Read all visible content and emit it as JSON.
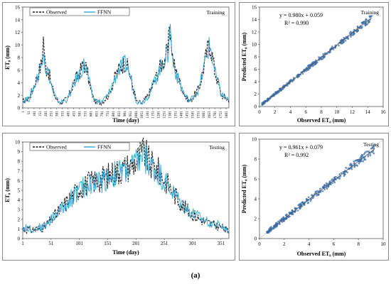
{
  "caption": "(a)",
  "colors": {
    "observed": "#1a1a1a",
    "ffnn": "#2ea8d8",
    "scatter": "#3a6fb0",
    "fit": "#555555"
  },
  "chart_data": [
    {
      "id": "training-ts",
      "type": "line",
      "panel_label": "Training",
      "xlabel": "Time (day)",
      "ylabel": "ET₀ (mm)",
      "ylim": [
        0,
        16
      ],
      "yticks": [
        0,
        2,
        4,
        6,
        8,
        10,
        12,
        14,
        16
      ],
      "xticks": [
        "1",
        "51",
        "101",
        "151",
        "201",
        "251",
        "301",
        "351",
        "401",
        "451",
        "501",
        "551",
        "601",
        "651",
        "701",
        "751",
        "801",
        "851",
        "901",
        "951",
        "1001",
        "1051",
        "1101",
        "1151",
        "1201",
        "1251",
        "1301",
        "1351",
        "1401",
        "1451",
        "1501",
        "1551",
        "1601",
        "1651",
        "1701",
        "1751",
        "1801"
      ],
      "xlim": [
        1,
        1826
      ],
      "legend": "top-left",
      "series": [
        {
          "name": "Observed",
          "style": "dashed",
          "x": [
            1,
            60,
            130,
            170,
            185,
            200,
            230,
            260,
            300,
            340,
            400,
            450,
            520,
            540,
            570,
            600,
            640,
            700,
            760,
            830,
            880,
            910,
            940,
            980,
            1010,
            1060,
            1120,
            1210,
            1260,
            1290,
            1300,
            1330,
            1370,
            1440,
            1480,
            1560,
            1610,
            1640,
            1660,
            1700,
            1760,
            1826
          ],
          "y": [
            1.0,
            1.6,
            5.0,
            7.2,
            11.5,
            6.5,
            5.8,
            3.2,
            1.2,
            0.8,
            1.5,
            3.8,
            6.2,
            7.0,
            6.0,
            3.0,
            1.0,
            0.9,
            2.0,
            5.5,
            6.8,
            7.2,
            6.0,
            3.0,
            0.9,
            0.8,
            2.2,
            6.2,
            8.0,
            9.0,
            14.0,
            7.5,
            5.0,
            1.8,
            1.0,
            3.0,
            7.0,
            9.5,
            10.2,
            6.0,
            2.0,
            1.2
          ]
        },
        {
          "name": "FFNN",
          "style": "solid",
          "x": [
            1,
            60,
            130,
            170,
            185,
            200,
            230,
            260,
            300,
            340,
            400,
            450,
            520,
            540,
            570,
            600,
            640,
            700,
            760,
            830,
            880,
            910,
            940,
            980,
            1010,
            1060,
            1120,
            1210,
            1260,
            1290,
            1300,
            1330,
            1370,
            1440,
            1480,
            1560,
            1610,
            1640,
            1660,
            1700,
            1760,
            1826
          ],
          "y": [
            1.1,
            1.5,
            4.8,
            7.0,
            11.0,
            6.4,
            5.6,
            3.1,
            1.3,
            0.9,
            1.4,
            3.6,
            6.0,
            6.8,
            5.9,
            3.1,
            1.1,
            1.0,
            2.1,
            5.3,
            6.6,
            7.0,
            5.8,
            3.0,
            1.0,
            0.9,
            2.1,
            6.0,
            7.8,
            8.6,
            13.5,
            7.2,
            4.8,
            1.9,
            1.1,
            2.9,
            6.8,
            9.2,
            9.8,
            5.8,
            2.1,
            1.3
          ]
        }
      ]
    },
    {
      "id": "training-scatter",
      "type": "scatter",
      "panel_label": "Training",
      "xlabel": "Observed ET₀ (mm)",
      "ylabel": "Predicted ET₀ (mm)",
      "xlim": [
        0,
        16
      ],
      "ylim": [
        0,
        16
      ],
      "xticks": [
        0,
        2,
        4,
        6,
        8,
        10,
        12,
        14,
        16
      ],
      "yticks": [
        0,
        2,
        4,
        6,
        8,
        10,
        12,
        14,
        16
      ],
      "equation": "y = 0.980x + 0.059",
      "r2": "R² = 0.990",
      "fit": {
        "slope": 0.98,
        "intercept": 0.059
      },
      "point_range": [
        0.3,
        14.5
      ]
    },
    {
      "id": "testing-ts",
      "type": "line",
      "panel_label": "Testing",
      "xlabel": "Time (day)",
      "ylabel": "ET₀ (mm)",
      "ylim": [
        0,
        10
      ],
      "yticks": [
        0,
        1,
        2,
        3,
        4,
        5,
        6,
        7,
        8,
        9,
        10
      ],
      "xticks": [
        "1",
        "51",
        "101",
        "151",
        "201",
        "251",
        "301",
        "351"
      ],
      "xlim": [
        1,
        365
      ],
      "legend": "top-left",
      "series": [
        {
          "name": "Observed",
          "style": "dashed",
          "x": [
            1,
            20,
            40,
            51,
            70,
            90,
            101,
            120,
            140,
            151,
            170,
            190,
            201,
            215,
            225,
            240,
            251,
            270,
            290,
            301,
            320,
            340,
            351,
            365
          ],
          "y": [
            1.0,
            0.9,
            1.2,
            1.9,
            3.2,
            4.5,
            5.2,
            5.8,
            6.2,
            6.5,
            7.0,
            7.5,
            8.0,
            9.0,
            7.8,
            7.0,
            6.2,
            4.5,
            3.0,
            2.5,
            1.8,
            1.4,
            1.2,
            0.7
          ]
        },
        {
          "name": "FFNN",
          "style": "solid",
          "x": [
            1,
            20,
            40,
            51,
            70,
            90,
            101,
            120,
            140,
            151,
            170,
            190,
            201,
            215,
            225,
            240,
            251,
            270,
            290,
            301,
            320,
            340,
            351,
            365
          ],
          "y": [
            1.1,
            1.0,
            1.3,
            2.0,
            3.1,
            4.4,
            5.0,
            5.7,
            6.0,
            6.4,
            6.8,
            7.3,
            7.8,
            8.7,
            7.6,
            6.9,
            6.0,
            4.4,
            3.1,
            2.6,
            1.9,
            1.5,
            1.3,
            0.8
          ]
        }
      ]
    },
    {
      "id": "testing-scatter",
      "type": "scatter",
      "panel_label": "Testing",
      "xlabel": "Observed ET₀ (mm)",
      "ylabel": "Predicted ET₀ (mm)",
      "xlim": [
        0,
        10
      ],
      "ylim": [
        0,
        10
      ],
      "xticks": [
        0,
        2,
        4,
        6,
        8,
        10
      ],
      "yticks": [
        0,
        2,
        4,
        6,
        8,
        10
      ],
      "equation": "y = 0.961x + 0.079",
      "r2": "R² = 0.992",
      "fit": {
        "slope": 0.961,
        "intercept": 0.079
      },
      "point_range": [
        0.6,
        9.3
      ]
    }
  ]
}
